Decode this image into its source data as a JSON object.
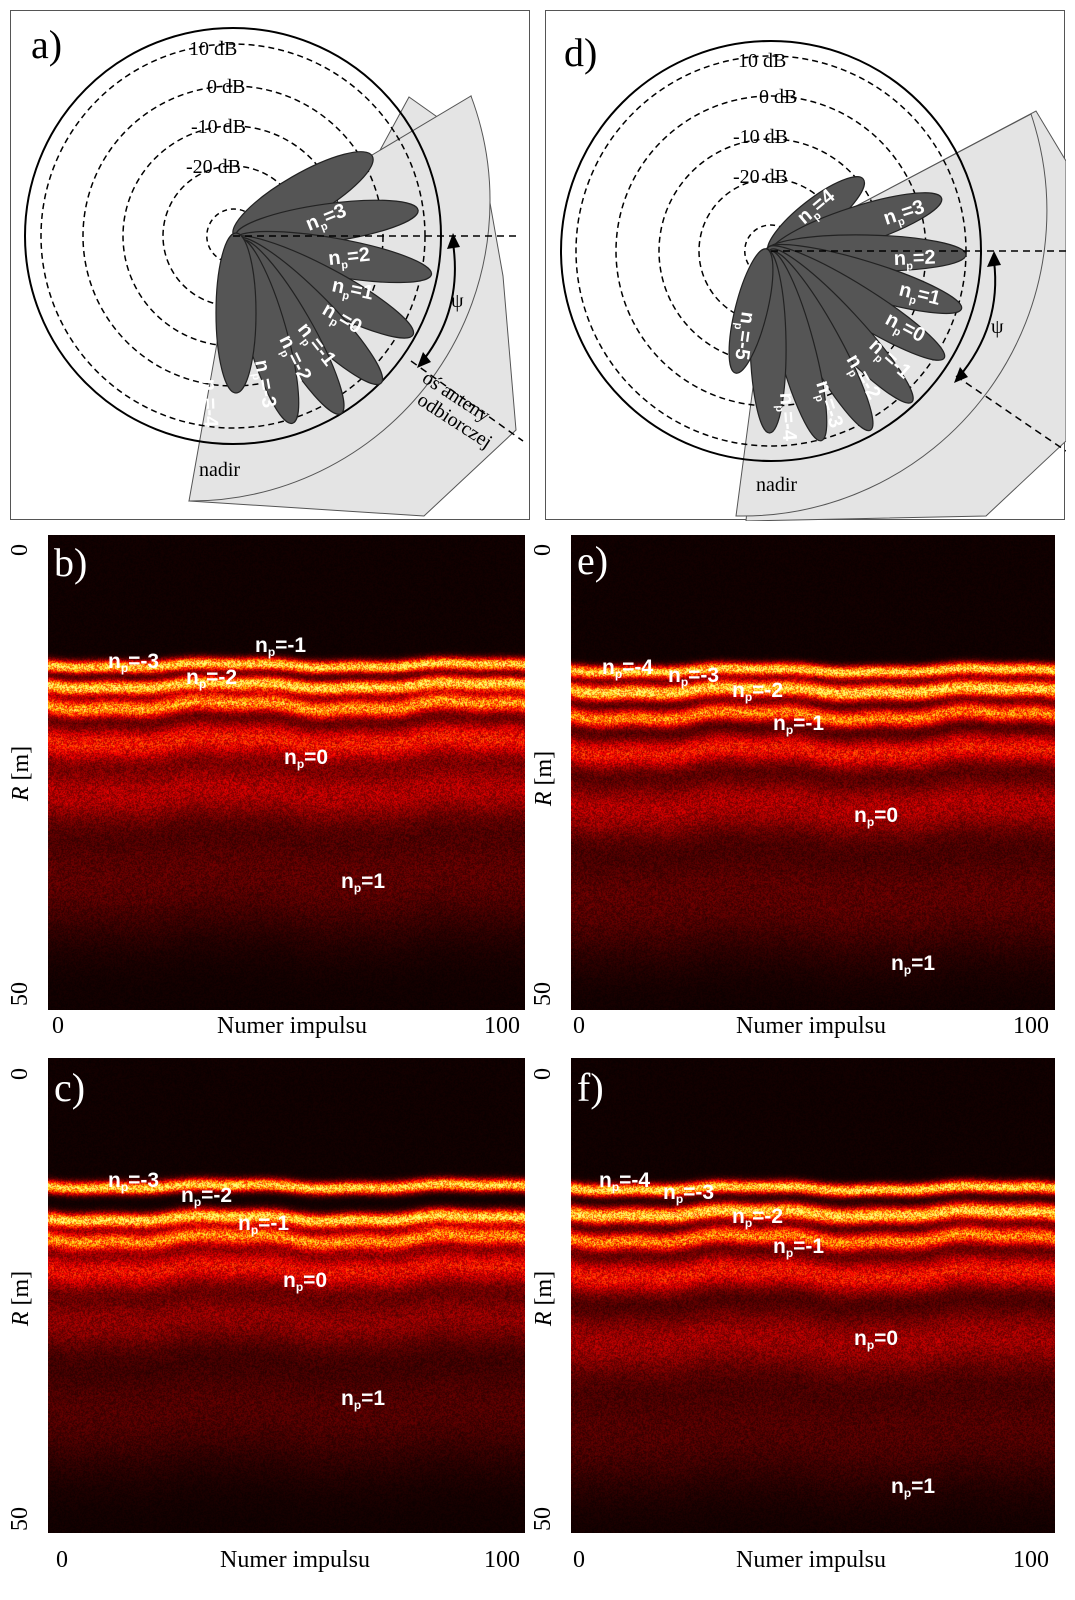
{
  "diagram_a": {
    "panel_label": "a)",
    "rings": [
      "10 dB",
      "0 dB",
      "-10 dB",
      "-20 dB"
    ],
    "lobes": [
      {
        "base": "n",
        "sub": "p",
        "val": "=3"
      },
      {
        "base": "n",
        "sub": "p",
        "val": "=2"
      },
      {
        "base": "n",
        "sub": "p",
        "val": "=1"
      },
      {
        "base": "n",
        "sub": "p",
        "val": "=0"
      },
      {
        "base": "n",
        "sub": "p",
        "val": "=-1"
      },
      {
        "base": "n",
        "sub": "p",
        "val": "=-2"
      },
      {
        "base": "n",
        "sub": "p",
        "val": "=-3"
      },
      {
        "base": "n",
        "sub": "p",
        "val": "=-4"
      }
    ],
    "psi": "ψ",
    "antenna_axis_1": "oś anteny",
    "antenna_axis_2": "odbiorczej",
    "nadir": "nadir"
  },
  "diagram_d": {
    "panel_label": "d)",
    "rings": [
      "10 dB",
      "0 dB",
      "-10 dB",
      "-20 dB"
    ],
    "lobes": [
      {
        "base": "n",
        "sub": "p",
        "val": "=4"
      },
      {
        "base": "n",
        "sub": "p",
        "val": "=3"
      },
      {
        "base": "n",
        "sub": "p",
        "val": "=2"
      },
      {
        "base": "n",
        "sub": "p",
        "val": "=1"
      },
      {
        "base": "n",
        "sub": "p",
        "val": "=0"
      },
      {
        "base": "n",
        "sub": "p",
        "val": "=-1"
      },
      {
        "base": "n",
        "sub": "p",
        "val": "=-2"
      },
      {
        "base": "n",
        "sub": "p",
        "val": "=-3"
      },
      {
        "base": "n",
        "sub": "p",
        "val": "=-4"
      },
      {
        "base": "n",
        "sub": "p",
        "val": "=-5"
      }
    ],
    "psi": "ψ",
    "nadir": "nadir"
  },
  "radargrams": {
    "b": {
      "panel_label": "b)",
      "labels": [
        {
          "sub": "p",
          "text": "=-3"
        },
        {
          "sub": "p",
          "text": "=-2"
        },
        {
          "sub": "p",
          "text": "=-1"
        },
        {
          "sub": "p",
          "text": "=0"
        },
        {
          "sub": "p",
          "text": "=1"
        }
      ]
    },
    "c": {
      "panel_label": "c)",
      "labels": [
        {
          "sub": "p",
          "text": "=-3"
        },
        {
          "sub": "p",
          "text": "=-2"
        },
        {
          "sub": "p",
          "text": "=-1"
        },
        {
          "sub": "p",
          "text": "=0"
        },
        {
          "sub": "p",
          "text": "=1"
        }
      ]
    },
    "e": {
      "panel_label": "e)",
      "labels": [
        {
          "sub": "p",
          "text": "=-4"
        },
        {
          "sub": "p",
          "text": "=-3"
        },
        {
          "sub": "p",
          "text": "=-2"
        },
        {
          "sub": "p",
          "text": "=-1"
        },
        {
          "sub": "p",
          "text": "=0"
        },
        {
          "sub": "p",
          "text": "=1"
        }
      ]
    },
    "f": {
      "panel_label": "f)",
      "labels": [
        {
          "sub": "p",
          "text": "=-4"
        },
        {
          "sub": "p",
          "text": "=-3"
        },
        {
          "sub": "p",
          "text": "=-2"
        },
        {
          "sub": "p",
          "text": "=-1"
        },
        {
          "sub": "p",
          "text": "=0"
        },
        {
          "sub": "p",
          "text": "=1"
        }
      ]
    }
  },
  "axes": {
    "x_title": "Numer impulsu",
    "x_min": "0",
    "x_max": "100",
    "y_title_var": "R",
    "y_title_unit": " [m]",
    "y_min": "0",
    "y_max": "50"
  },
  "colors": {
    "lobe": "#555555",
    "sector": "#e4e4e4",
    "radar_bg": "#050000"
  }
}
